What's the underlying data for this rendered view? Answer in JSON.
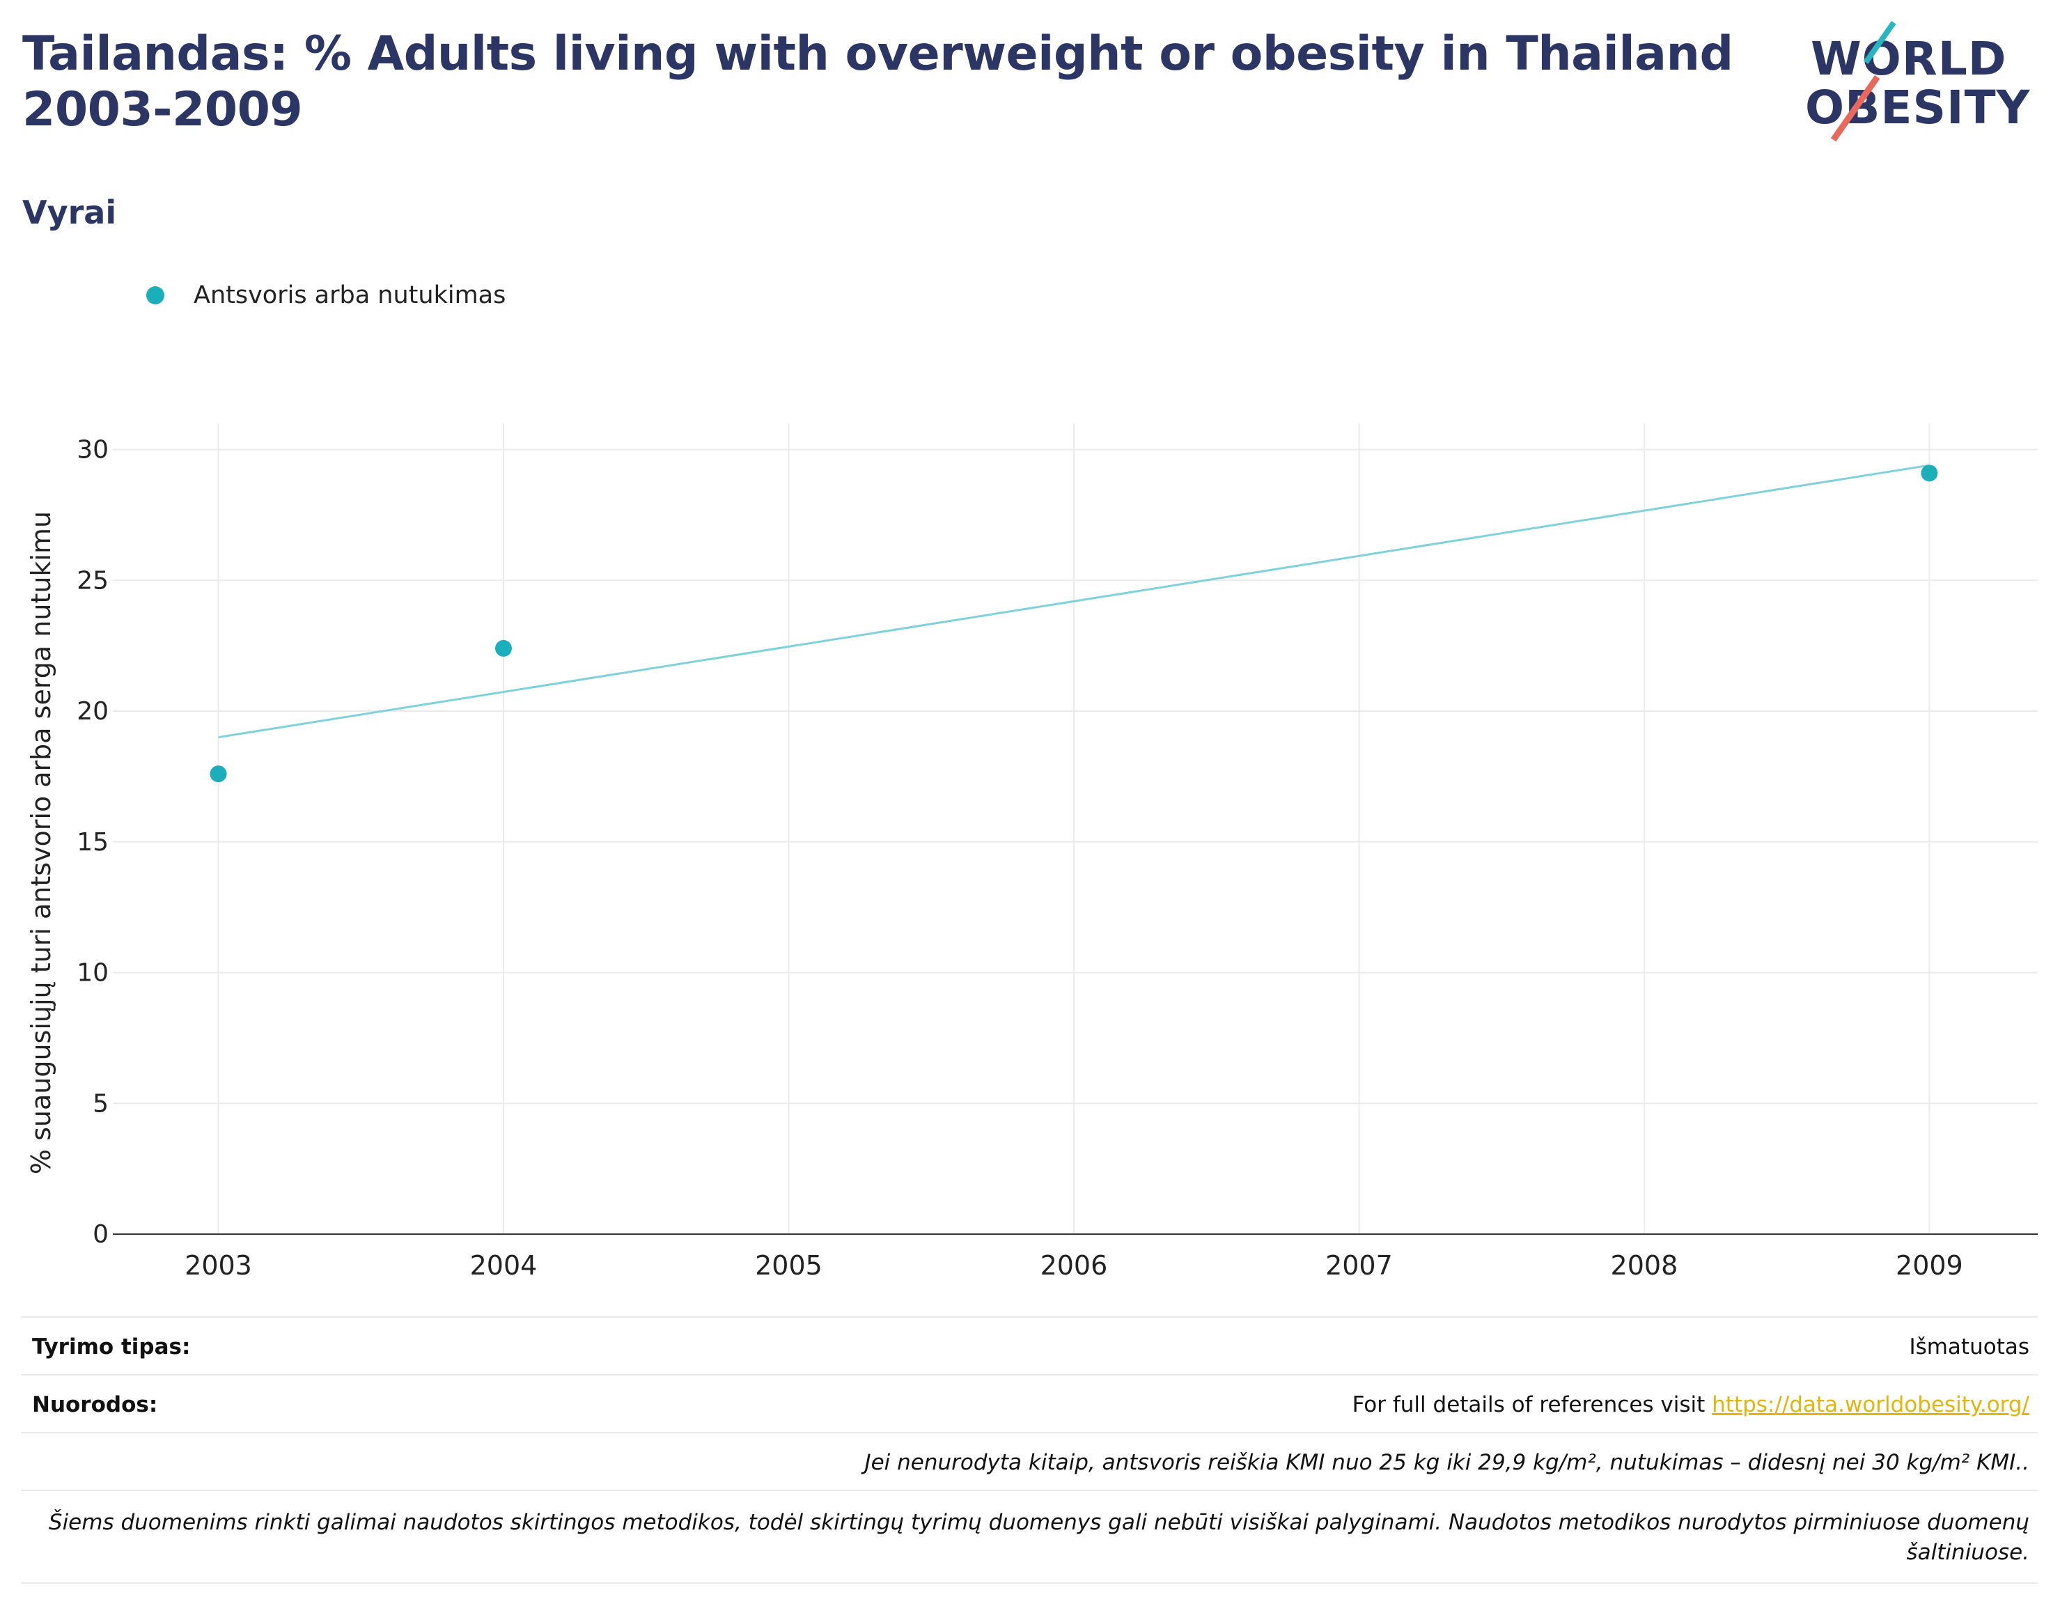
{
  "header": {
    "title": "Tailandas: % Adults living with overweight or obesity in Thailand 2003-2009",
    "subtitle": "Vyrai",
    "logo_line1": "WORLD",
    "logo_line2": "OBESITY"
  },
  "colors": {
    "title": "#2b3664",
    "series": "#1aafba",
    "trendline": "#7fd3d8",
    "link": "#e3b40b"
  },
  "chart_data": {
    "type": "scatter",
    "title": "Tailandas: % Adults living with overweight or obesity in Thailand 2003-2009",
    "subtitle": "Vyrai",
    "ylabel": "% suaugusiųjų turi antsvorio arba serga nutukimu",
    "xlabel": "",
    "x_ticks": [
      2003,
      2004,
      2005,
      2006,
      2007,
      2008,
      2009
    ],
    "y_ticks": [
      0,
      5,
      10,
      15,
      20,
      25,
      30
    ],
    "xlim": [
      2002.63,
      2009.38
    ],
    "ylim": [
      0,
      31
    ],
    "grid": true,
    "legend_position": "top-left",
    "series": [
      {
        "name": "Antsvoris arba nutukimas",
        "x": [
          2003,
          2004,
          2009
        ],
        "y": [
          17.6,
          22.4,
          29.1
        ]
      }
    ],
    "trendline": {
      "x": [
        2003,
        2009
      ],
      "y": [
        19.0,
        29.4
      ]
    }
  },
  "footer": {
    "study_type_label": "Tyrimo tipas:",
    "study_type_value": "Išmatuotas",
    "references_label": "Nuorodos:",
    "references_text": "For full details of references visit ",
    "references_link": "https://data.worldobesity.org/",
    "note1": "Jei nenurodyta kitaip, antsvoris reiškia KMI nuo 25 kg iki 29,9 kg/m², nutukimas – didesnį nei 30 kg/m² KMI..",
    "note2_line1": "Šiems duomenims rinkti galimai naudotos skirtingos metodikos, todėl skirtingų tyrimų duomenys gali nebūti visiškai palyginami. Naudotos metodikos nurodytos pirminiuose duomenų",
    "note2_line2": "šaltiniuose."
  }
}
